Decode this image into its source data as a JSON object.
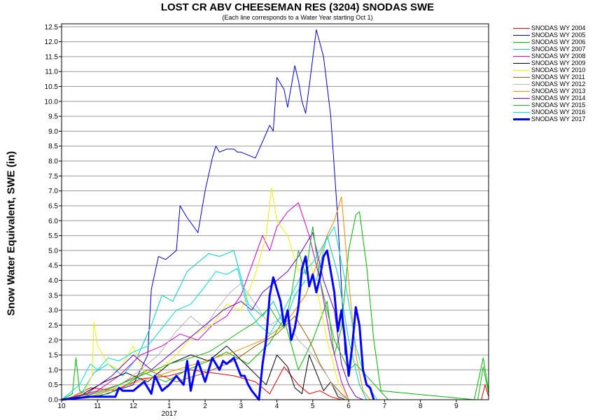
{
  "chart_data": {
    "type": "line",
    "title": "LOST CR ABV CHEESEMAN RES (3204) SNODAS SWE",
    "subtitle": "(Each line corresponds to a Water Year starting Oct 1)",
    "ylabel": "Snow Water Equivalent, SWE (in)",
    "xlabel": "",
    "x_unit": "month (10 = Oct 1 ... 9 = Sep; value is position in water year, 0 = Oct 1, 12 = next Oct 1)",
    "x_ticks": [
      {
        "pos": 0,
        "label": "10"
      },
      {
        "pos": 1,
        "label": "11"
      },
      {
        "pos": 2,
        "label": "12"
      },
      {
        "pos": 3,
        "label": "1"
      },
      {
        "pos": 4,
        "label": "2"
      },
      {
        "pos": 5,
        "label": "3"
      },
      {
        "pos": 6,
        "label": "4"
      },
      {
        "pos": 7,
        "label": "5"
      },
      {
        "pos": 8,
        "label": "6"
      },
      {
        "pos": 9,
        "label": "7"
      },
      {
        "pos": 10,
        "label": "8"
      },
      {
        "pos": 11,
        "label": "9"
      }
    ],
    "year_label": "2017",
    "xlim": [
      0,
      11.9
    ],
    "ylim": [
      0,
      12.6
    ],
    "y_ticks": [
      "0.0",
      "0.5",
      "1.0",
      "1.5",
      "2.0",
      "2.5",
      "3.0",
      "3.5",
      "4.0",
      "4.5",
      "5.0",
      "5.5",
      "6.0",
      "6.5",
      "7.0",
      "7.5",
      "8.0",
      "8.5",
      "9.0",
      "9.5",
      "10.0",
      "10.5",
      "11.0",
      "11.5",
      "12.0",
      "12.5"
    ],
    "grid": "horizontal",
    "legend_position": "right",
    "series": [
      {
        "name": "SNODAS WY 2004",
        "color": "#e00000",
        "width": 1,
        "x": [
          0,
          0.3,
          0.8,
          1.5,
          2.2,
          3.0,
          3.6,
          4.2,
          4.8,
          5.4,
          5.8,
          6.2,
          6.6,
          6.9,
          7.2,
          7.5,
          7.8,
          11.7,
          11.8,
          11.9
        ],
        "y": [
          0,
          0.1,
          0.4,
          0.3,
          0.7,
          0.8,
          1.0,
          0.9,
          0.8,
          0.6,
          0.2,
          1.1,
          0.5,
          0.2,
          0.3,
          0.1,
          0,
          0,
          0.5,
          0.1
        ]
      },
      {
        "name": "SNODAS WY 2005",
        "color": "#0000c8",
        "width": 1,
        "x": [
          0,
          1.0,
          1.5,
          2.0,
          2.4,
          2.5,
          2.7,
          2.9,
          3.2,
          3.3,
          3.5,
          3.8,
          4.0,
          4.2,
          4.3,
          4.4,
          4.6,
          4.8,
          4.9,
          5.0,
          5.4,
          5.8,
          5.9,
          6.0,
          6.2,
          6.3,
          6.5,
          6.6,
          6.7,
          6.8,
          6.9,
          7.1,
          7.3,
          7.5,
          7.7,
          7.9
        ],
        "y": [
          0,
          0.1,
          0.3,
          0.5,
          1.5,
          3.7,
          4.8,
          4.7,
          5.0,
          6.5,
          6.1,
          5.6,
          7.0,
          8.1,
          8.5,
          8.3,
          8.4,
          8.4,
          8.3,
          8.3,
          8.1,
          9.2,
          9.0,
          10.8,
          10.4,
          9.8,
          11.2,
          10.7,
          10.0,
          9.6,
          10.5,
          12.4,
          11.5,
          9.5,
          6.0,
          1.5
        ]
      },
      {
        "name": "SNODAS WY 2006",
        "color": "#00b400",
        "width": 1,
        "x": [
          0,
          0.3,
          0.4,
          0.5,
          0.8,
          1.3,
          1.8,
          2.3,
          2.9,
          3.5,
          4.1,
          4.6,
          5.2,
          5.8,
          6.2,
          6.6,
          7.0,
          7.4,
          7.6,
          7.8,
          8.0,
          8.2,
          8.3,
          8.5,
          8.7,
          8.9,
          11.5,
          11.75,
          11.9
        ],
        "y": [
          0,
          0.2,
          1.4,
          0.3,
          0.1,
          0.2,
          0.5,
          0.9,
          0.6,
          1.0,
          1.3,
          1.6,
          1.2,
          1.9,
          2.7,
          1.0,
          2.0,
          3.3,
          1.5,
          2.4,
          5.0,
          6.2,
          6.3,
          4.5,
          2.0,
          0.3,
          0,
          1.4,
          0.3
        ]
      },
      {
        "name": "SNODAS WY 2007",
        "color": "#00c8c8",
        "width": 1,
        "x": [
          0,
          0.5,
          0.9,
          1.3,
          1.7,
          2.1,
          2.5,
          2.8,
          3.1,
          3.5,
          3.8,
          4.1,
          4.4,
          4.8,
          5.2,
          5.6,
          5.9,
          6.2,
          6.5,
          6.8,
          7.1,
          7.4,
          7.7,
          8.0,
          8.3,
          8.5
        ],
        "y": [
          0,
          0.1,
          0.9,
          1.2,
          0.8,
          1.4,
          2.5,
          3.5,
          3.3,
          4.3,
          4.6,
          4.9,
          4.8,
          5.0,
          3.2,
          2.8,
          3.3,
          2.5,
          3.5,
          4.0,
          4.0,
          5.5,
          4.2,
          2.0,
          0.5,
          0
        ]
      },
      {
        "name": "SNODAS WY 2008",
        "color": "#c800c8",
        "width": 1,
        "x": [
          0,
          1.0,
          1.6,
          2.2,
          2.8,
          3.3,
          3.8,
          4.2,
          4.6,
          5.0,
          5.3,
          5.6,
          5.8,
          6.0,
          6.3,
          6.6,
          6.9,
          7.2,
          7.5,
          7.8,
          8.0
        ],
        "y": [
          0,
          0.3,
          0.8,
          1.5,
          1.8,
          2.2,
          2.0,
          2.5,
          2.8,
          3.5,
          4.5,
          5.5,
          5.0,
          5.8,
          6.3,
          6.6,
          5.5,
          4.0,
          2.0,
          0.6,
          0
        ]
      },
      {
        "name": "SNODAS WY 2009",
        "color": "#000000",
        "width": 1,
        "x": [
          0,
          0.6,
          1.2,
          1.8,
          2.4,
          3.0,
          3.6,
          4.1,
          4.6,
          5.2,
          5.7,
          6.0,
          6.3,
          6.5,
          6.7,
          6.9,
          7.1,
          7.3,
          7.5,
          7.7,
          7.9
        ],
        "y": [
          0,
          0.2,
          0.6,
          0.9,
          0.6,
          1.2,
          1.5,
          1.3,
          1.8,
          1.1,
          0.5,
          1.5,
          1.1,
          0.4,
          0.2,
          1.5,
          0.9,
          0.3,
          0.6,
          0.1,
          0
        ]
      },
      {
        "name": "SNODAS WY 2010",
        "color": "#f0f000",
        "width": 1,
        "x": [
          0,
          0.6,
          0.85,
          0.9,
          1.0,
          1.3,
          1.6,
          2.0,
          2.3,
          2.7,
          3.2,
          3.7,
          4.2,
          4.6,
          5.0,
          5.4,
          5.7,
          5.85,
          6.0,
          6.3,
          6.6,
          6.9,
          7.1,
          7.4,
          7.7,
          8.0
        ],
        "y": [
          0,
          0.2,
          0.8,
          2.6,
          1.8,
          1.2,
          1.0,
          1.8,
          0.9,
          1.0,
          1.5,
          2.2,
          2.5,
          3.2,
          3.0,
          4.2,
          5.5,
          7.1,
          6.0,
          5.5,
          4.3,
          4.7,
          3.8,
          2.0,
          0.6,
          0
        ]
      },
      {
        "name": "SNODAS WY 2011",
        "color": "#a05a00",
        "width": 1,
        "x": [
          0,
          0.8,
          1.6,
          2.4,
          3.2,
          4.0,
          4.8,
          5.4,
          6.0,
          6.5,
          6.9,
          7.2,
          7.5,
          7.8,
          8.0
        ],
        "y": [
          0,
          0.2,
          0.5,
          1.0,
          0.6,
          0.9,
          1.3,
          1.8,
          2.2,
          2.8,
          2.0,
          1.2,
          0.6,
          0.2,
          0
        ]
      },
      {
        "name": "SNODAS WY 2012",
        "color": "#b4b4b4",
        "width": 1,
        "x": [
          0,
          0.8,
          1.5,
          2.1,
          2.7,
          3.2,
          3.6,
          4.0,
          4.3,
          4.7,
          5.0,
          5.4,
          5.8,
          6.2,
          6.6,
          7.0,
          7.4,
          7.7,
          8.0
        ],
        "y": [
          0,
          0.1,
          0.4,
          0.9,
          1.5,
          2.3,
          2.8,
          2.4,
          3.0,
          3.6,
          3.9,
          3.2,
          2.5,
          2.8,
          2.0,
          1.5,
          0.8,
          0.2,
          0
        ]
      },
      {
        "name": "SNODAS WY 2013",
        "color": "#f08c00",
        "width": 1,
        "x": [
          0,
          0.8,
          1.6,
          2.4,
          3.2,
          4.0,
          4.8,
          5.6,
          6.2,
          6.8,
          7.1,
          7.4,
          7.6,
          7.8,
          8.0,
          8.2,
          8.4,
          8.6
        ],
        "y": [
          0,
          0.1,
          0.4,
          0.7,
          1.0,
          1.3,
          1.6,
          2.0,
          2.5,
          3.5,
          4.5,
          5.5,
          6.0,
          6.8,
          4.0,
          1.5,
          0.3,
          0
        ]
      },
      {
        "name": "SNODAS WY 2014",
        "color": "#6400c8",
        "width": 1,
        "x": [
          0,
          0.7,
          1.4,
          2.0,
          2.5,
          3.0,
          3.5,
          4.0,
          4.5,
          5.0,
          5.3,
          5.6,
          6.0,
          6.3,
          6.6,
          7.0,
          7.3,
          7.6,
          7.8,
          8.0,
          8.2,
          8.4
        ],
        "y": [
          0,
          0.2,
          0.8,
          1.5,
          1.0,
          1.5,
          2.0,
          2.5,
          3.0,
          3.3,
          3.0,
          3.6,
          4.0,
          4.3,
          4.8,
          5.6,
          4.0,
          3.0,
          1.2,
          0.5,
          0.1,
          0
        ]
      },
      {
        "name": "SNODAS WY 2015",
        "color": "#14b414",
        "width": 1,
        "x": [
          0,
          0.6,
          1.2,
          1.8,
          2.4,
          3.0,
          3.6,
          4.1,
          4.5,
          5.0,
          5.4,
          5.8,
          6.0,
          6.2,
          6.4,
          6.6,
          6.8,
          7.0,
          7.2,
          7.4,
          7.6,
          7.8,
          8.0,
          8.2,
          8.5,
          8.8,
          9.1,
          11.6,
          11.75,
          11.9
        ],
        "y": [
          0,
          0.1,
          0.3,
          0.6,
          0.9,
          1.2,
          1.4,
          1.6,
          1.9,
          2.3,
          2.6,
          3.1,
          2.7,
          2.4,
          3.5,
          5.0,
          4.2,
          5.8,
          4.0,
          3.0,
          2.0,
          1.5,
          1.0,
          1.2,
          0.8,
          0.4,
          0,
          0,
          1.1,
          0.2
        ]
      },
      {
        "name": "SNODAS WY 2016",
        "color": "#00dcdc",
        "width": 1,
        "x": [
          0,
          0.5,
          0.8,
          1.0,
          1.3,
          1.6,
          2.0,
          2.4,
          2.8,
          3.2,
          3.6,
          4.0,
          4.3,
          4.6,
          4.9,
          5.2,
          5.5,
          5.8,
          6.1,
          6.4,
          6.7,
          7.0,
          7.3,
          7.6,
          7.9,
          8.2,
          8.5,
          8.8
        ],
        "y": [
          0,
          0.5,
          1.2,
          1.0,
          1.4,
          1.3,
          1.6,
          1.8,
          2.4,
          3.0,
          3.2,
          3.8,
          4.3,
          4.2,
          4.4,
          3.0,
          2.5,
          2.2,
          2.8,
          3.5,
          4.2,
          4.6,
          5.2,
          5.8,
          4.0,
          1.8,
          0.5,
          0
        ]
      },
      {
        "name": "SNODAS WY 2017",
        "color": "#0000ff",
        "width": 3,
        "x": [
          0,
          0.8,
          1.5,
          1.6,
          1.7,
          2.0,
          2.3,
          2.5,
          2.6,
          2.8,
          3.0,
          3.2,
          3.4,
          3.5,
          3.6,
          3.7,
          3.8,
          4.0,
          4.2,
          4.4,
          4.5,
          4.6,
          4.8,
          5.0,
          5.1,
          5.2,
          5.3,
          5.5,
          5.6,
          5.7,
          5.8,
          5.9,
          6.1,
          6.2,
          6.3,
          6.4,
          6.5,
          6.6,
          6.7,
          6.8,
          6.9,
          7.0,
          7.1,
          7.2,
          7.3,
          7.4,
          7.5,
          7.6,
          7.7,
          7.8,
          7.9,
          8.0,
          8.1,
          8.2,
          8.3,
          8.4,
          8.5,
          8.6,
          8.7
        ],
        "y": [
          0,
          0.1,
          0.1,
          0.4,
          0.3,
          0.3,
          0.6,
          0.2,
          0.8,
          0.3,
          0.5,
          0.8,
          0.5,
          1.3,
          0.3,
          0.9,
          1.3,
          0.6,
          1.4,
          1.0,
          1.3,
          1.2,
          1.4,
          0.8,
          0.8,
          0.5,
          0.3,
          0,
          1.2,
          2.0,
          3.5,
          4.1,
          3.3,
          2.5,
          3.0,
          2.0,
          2.4,
          3.1,
          4.4,
          4.8,
          3.8,
          4.2,
          3.6,
          4.1,
          4.8,
          5.0,
          4.3,
          3.6,
          2.3,
          3.0,
          2.0,
          0.8,
          1.8,
          3.1,
          2.5,
          1.0,
          0.5,
          0.4,
          0
        ]
      }
    ]
  }
}
